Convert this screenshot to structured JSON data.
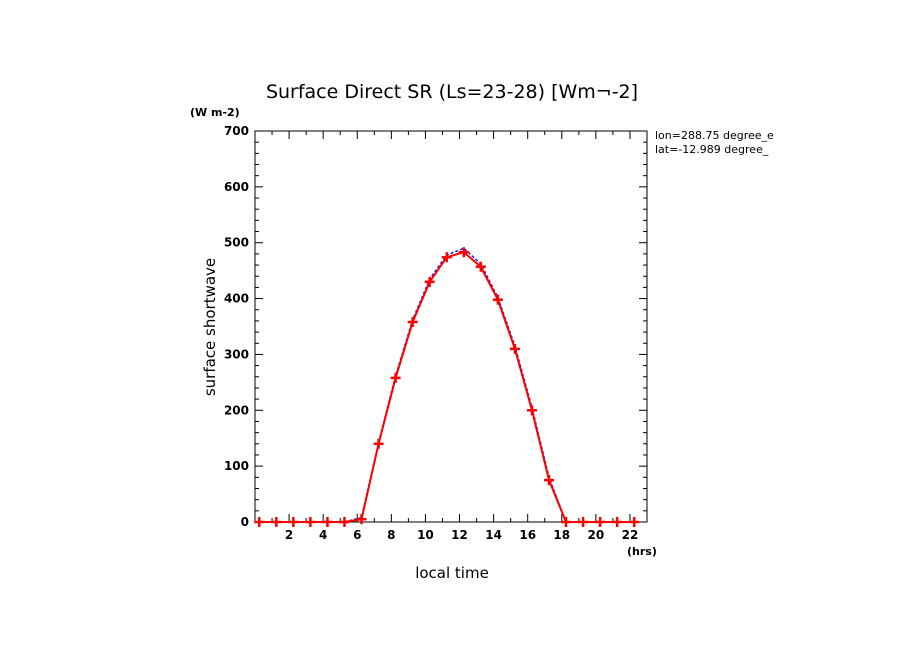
{
  "chart_data": {
    "type": "line",
    "title": "Surface Direct SR (Ls=23-28) [Wm¬-2]",
    "xlabel": "local time",
    "ylabel": "surface shortwave",
    "x_unit": "(hrs)",
    "y_unit": "(W m-2)",
    "annotations": [
      "lon=288.75 degree_e",
      "lat=-12.989 degree_"
    ],
    "xlim": [
      0,
      23
    ],
    "ylim": [
      0,
      700
    ],
    "x_ticks": [
      2,
      4,
      6,
      8,
      10,
      12,
      14,
      16,
      18,
      20,
      22
    ],
    "y_ticks": [
      0,
      100,
      200,
      300,
      400,
      500,
      600,
      700
    ],
    "grid": false,
    "series": [
      {
        "color": "#2222cc",
        "style": "dashed",
        "x": [
          0.25,
          1.25,
          2.25,
          3.25,
          4.25,
          5.25,
          6.25,
          7.25,
          8.25,
          9.25,
          10.25,
          11.25,
          12.25,
          13.25,
          14.25,
          15.25,
          16.25,
          17.25,
          18.25,
          19.25,
          20.25,
          21.25,
          22.25
        ],
        "y": [
          0,
          0,
          0,
          0,
          0,
          0,
          8,
          142,
          262,
          362,
          435,
          478,
          490,
          462,
          402,
          315,
          205,
          80,
          0,
          0,
          0,
          0,
          0
        ]
      },
      {
        "color": "#ff0000",
        "style": "solid",
        "marker": "plus",
        "x": [
          0.25,
          1.25,
          2.25,
          3.25,
          4.25,
          5.25,
          6.25,
          7.25,
          8.25,
          9.25,
          10.25,
          11.25,
          12.25,
          13.25,
          14.25,
          15.25,
          16.25,
          17.25,
          18.25,
          19.25,
          20.25,
          21.25,
          22.25
        ],
        "y": [
          0,
          0,
          0,
          0,
          0,
          0,
          5,
          140,
          258,
          358,
          430,
          474,
          483,
          457,
          398,
          310,
          200,
          75,
          0,
          0,
          0,
          0,
          0
        ]
      }
    ]
  }
}
